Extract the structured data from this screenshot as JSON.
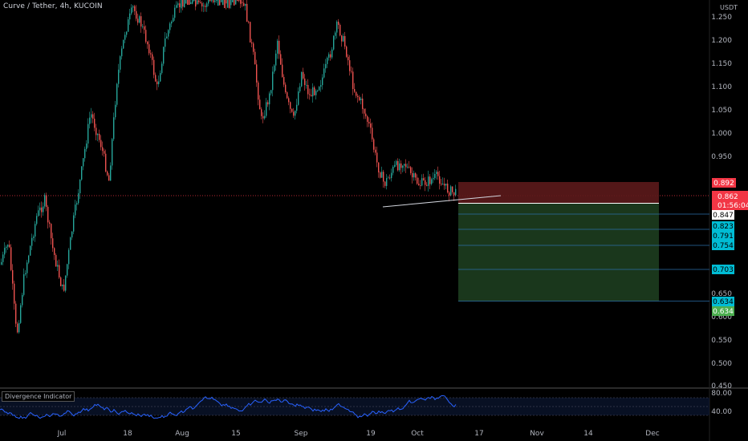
{
  "header": {
    "title": "Curve / Tether, 4h, KUCOIN",
    "currency": "USDT"
  },
  "indicator": {
    "title": "Divergence Indicator",
    "levels": [
      "80.00",
      "40.00"
    ]
  },
  "price_axis": {
    "ticks": [
      "1.250",
      "1.200",
      "1.150",
      "1.100",
      "1.050",
      "1.000",
      "0.950",
      "0.650",
      "0.600",
      "0.550",
      "0.500",
      "0.450"
    ]
  },
  "time_axis": {
    "ticks": [
      "Jul",
      "18",
      "Aug",
      "15",
      "Sep",
      "19",
      "Oct",
      "17",
      "Nov",
      "14",
      "Dec"
    ]
  },
  "price_tags": {
    "stop": "0.892",
    "current": "0.862",
    "countdown": "01:56:04",
    "entry": "0.847",
    "tp1": "0.823",
    "tp2": "0.791",
    "tp3": "0.754",
    "tp4": "0.703",
    "tp5": "0.634",
    "target": "0.634"
  },
  "colors": {
    "up": "#26a69a",
    "down": "#ef5350",
    "rsi": "#2962ff",
    "stop_zone": "#5c1a1b",
    "target_zone": "#1b3a1e",
    "tp_tag": "#00bcd4",
    "target_tag": "#4caf50",
    "stop_tag": "#f23645"
  }
}
